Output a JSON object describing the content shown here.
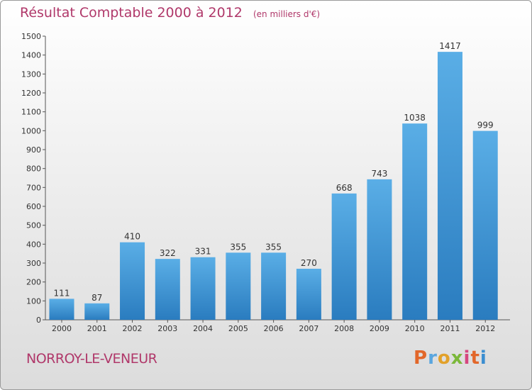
{
  "header": {
    "title": "Résultat Comptable 2000 à 2012",
    "unit": "(en milliers d'€)"
  },
  "commune": "NORROY-LE-VENEUR",
  "logo": {
    "letters": [
      "P",
      "r",
      "o",
      "x",
      "i",
      "t",
      "i"
    ],
    "colors": [
      "#e2672a",
      "#5aa6df",
      "#e2a12a",
      "#7bb83a",
      "#d6477f",
      "#e2672a",
      "#3b8ed0"
    ]
  },
  "colors": {
    "bar_top": "#5aaee6",
    "bar_bottom": "#2a7cbf",
    "title": "#b0386a"
  },
  "chart_data": {
    "type": "bar",
    "title": "Résultat Comptable 2000 à 2012",
    "xlabel": "",
    "ylabel": "(en milliers d'€)",
    "ylim": [
      0,
      1500
    ],
    "ytick_step": 100,
    "grid": false,
    "categories": [
      "2000",
      "2001",
      "2002",
      "2003",
      "2004",
      "2005",
      "2006",
      "2007",
      "2008",
      "2009",
      "2010",
      "2011",
      "2012"
    ],
    "values": [
      111,
      87,
      410,
      322,
      331,
      355,
      355,
      270,
      668,
      743,
      1038,
      1417,
      999
    ]
  }
}
